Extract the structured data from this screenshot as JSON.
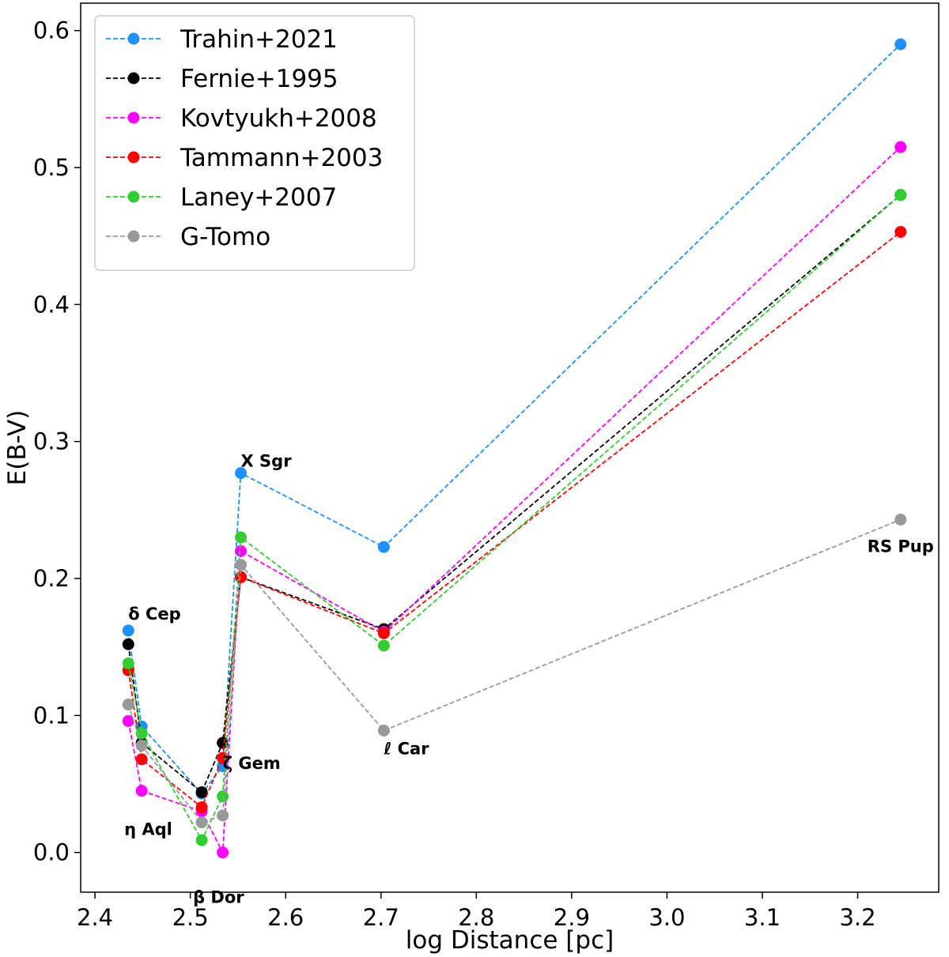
{
  "chart_data": {
    "type": "line",
    "xlabel": "log Distance [pc]",
    "ylabel": "E(B-V)",
    "xlim": [
      2.385,
      3.285
    ],
    "ylim": [
      -0.029,
      0.62
    ],
    "xticks": [
      2.4,
      2.5,
      2.6,
      2.7,
      2.8,
      2.9,
      3.0,
      3.1,
      3.2
    ],
    "xtick_labels": [
      "2.4",
      "2.5",
      "2.6",
      "2.7",
      "2.8",
      "2.9",
      "3.0",
      "3.1",
      "3.2"
    ],
    "yticks": [
      0.0,
      0.1,
      0.2,
      0.3,
      0.4,
      0.5,
      0.6
    ],
    "ytick_labels": [
      "0.0",
      "0.1",
      "0.2",
      "0.3",
      "0.4",
      "0.5",
      "0.6"
    ],
    "grid": false,
    "legend_position": "top-left",
    "line_style": "dashed",
    "x": [
      2.435,
      2.449,
      2.512,
      2.534,
      2.553,
      2.703,
      3.245
    ],
    "series": [
      {
        "name": "Trahin+2021",
        "color": "#1e90ff",
        "values": [
          0.162,
          0.092,
          0.043,
          0.063,
          0.277,
          0.223,
          0.59
        ]
      },
      {
        "name": "Fernie+1995",
        "color": "#000000",
        "values": [
          0.152,
          0.08,
          0.044,
          0.08,
          0.201,
          0.163,
          0.48
        ]
      },
      {
        "name": "Kovtyukh+2008",
        "color": "#ff00ff",
        "values": [
          0.096,
          0.045,
          0.03,
          0.0,
          0.22,
          0.161,
          0.515
        ]
      },
      {
        "name": "Tammann+2003",
        "color": "#ff0000",
        "values": [
          0.133,
          0.068,
          0.033,
          0.069,
          0.201,
          0.16,
          0.453
        ]
      },
      {
        "name": "Laney+2007",
        "color": "#32cd32",
        "values": [
          0.138,
          0.087,
          0.009,
          0.041,
          0.23,
          0.151,
          0.48
        ]
      },
      {
        "name": "G-Tomo",
        "color": "#999999",
        "values": [
          0.108,
          0.078,
          0.022,
          0.027,
          0.21,
          0.089,
          0.243
        ]
      }
    ],
    "annotations": [
      {
        "text": "δ Cep",
        "x": 2.435,
        "y": 0.162
      },
      {
        "text": "η Aql",
        "x": 2.449,
        "y": 0.045
      },
      {
        "text": "β Dor",
        "x": 2.512,
        "y": 0.0
      },
      {
        "text": "ζ Gem",
        "x": 2.534,
        "y": 0.08
      },
      {
        "text": "X Sgr",
        "x": 2.553,
        "y": 0.277
      },
      {
        "text": "ℓ Car",
        "x": 2.703,
        "y": 0.089
      },
      {
        "text": "RS Pup",
        "x": 3.245,
        "y": 0.243
      }
    ]
  }
}
